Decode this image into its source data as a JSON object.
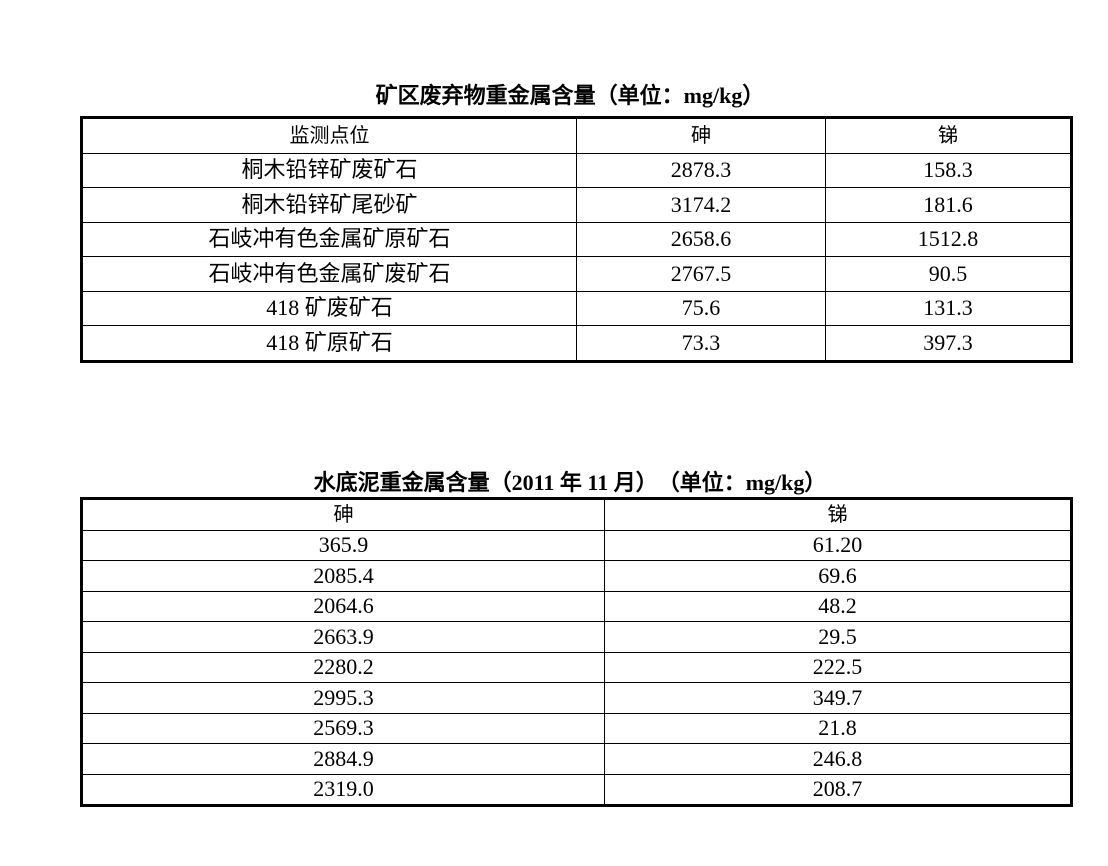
{
  "waste_table": {
    "title": "矿区废弃物重金属含量（单位：mg/kg）",
    "headers": [
      "监测点位",
      "砷",
      "锑"
    ],
    "rows": [
      [
        "桐木铅锌矿废矿石",
        "2878.3",
        "158.3"
      ],
      [
        "桐木铅锌矿尾砂矿",
        "3174.2",
        "181.6"
      ],
      [
        "石岐冲有色金属矿原矿石",
        "2658.6",
        "1512.8"
      ],
      [
        "石岐冲有色金属矿废矿石",
        "2767.5",
        "90.5"
      ],
      [
        "418 矿废矿石",
        "75.6",
        "131.3"
      ],
      [
        "418 矿原矿石",
        "73.3",
        "397.3"
      ]
    ]
  },
  "sediment_table": {
    "title": "水底泥重金属含量（2011 年 11 月）　（单位：mg/kg）",
    "headers": [
      "砷",
      "锑"
    ],
    "rows": [
      [
        "365.9",
        "61.20"
      ],
      [
        "2085.4",
        "69.6"
      ],
      [
        "2064.6",
        "48.2"
      ],
      [
        "2663.9",
        "29.5"
      ],
      [
        "2280.2",
        "222.5"
      ],
      [
        "2995.3",
        "349.7"
      ],
      [
        "2569.3",
        "21.8"
      ],
      [
        "2884.9",
        "246.8"
      ],
      [
        "2319.0",
        "208.7"
      ]
    ]
  }
}
